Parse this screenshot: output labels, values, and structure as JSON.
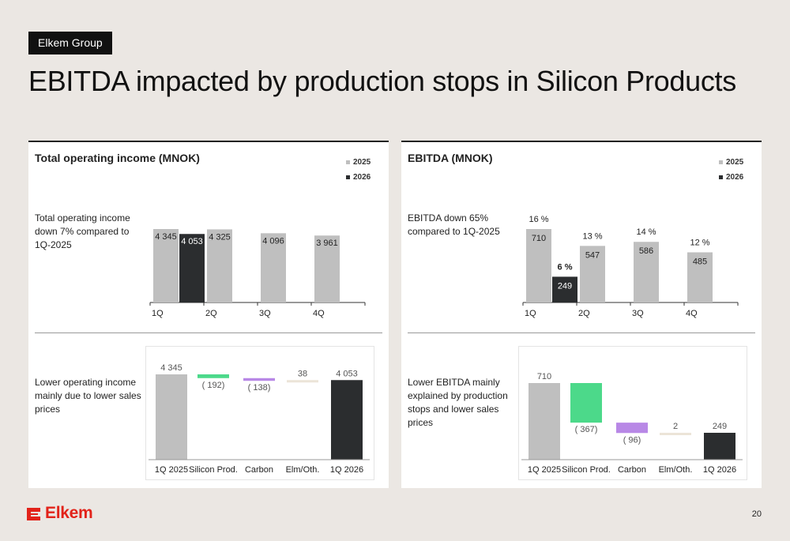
{
  "header": {
    "tag": "Elkem Group",
    "title": "EBITDA impacted by production stops in Silicon Products"
  },
  "colors": {
    "bar_2025": "#bfbfbf",
    "bar_2026": "#2b2d2f",
    "silicon": "#4cd98a",
    "carbon": "#b888e6",
    "elm": "#ece4d8",
    "brand": "#e2231a"
  },
  "left_panel": {
    "title": "Total operating income (MNOK)",
    "legend": [
      "2025",
      "2026"
    ],
    "note_top": "Total operating income down 7% compared to 1Q-2025",
    "note_bottom": "Lower operating income mainly due to lower sales prices"
  },
  "right_panel": {
    "title": "EBITDA (MNOK)",
    "legend": [
      "2025",
      "2026"
    ],
    "note_top": "EBITDA down 65% compared to 1Q-2025",
    "note_bottom": "Lower EBITDA mainly explained by production stops and lower sales prices"
  },
  "footer": {
    "logo": "Elkem",
    "page": "20"
  },
  "chart_data": [
    {
      "id": "toi_bar",
      "type": "bar",
      "title": "Total operating income (MNOK)",
      "categories": [
        "1Q",
        "2Q",
        "3Q",
        "4Q"
      ],
      "series": [
        {
          "name": "2025",
          "values": [
            4345,
            4325,
            4096,
            3961
          ],
          "labels": [
            "4 345",
            "4 325",
            "4 096",
            "3 961"
          ]
        },
        {
          "name": "2026",
          "values": [
            4053,
            null,
            null,
            null
          ],
          "labels": [
            "4 053",
            "",
            "",
            ""
          ]
        }
      ],
      "ylim": [
        0,
        4345
      ]
    },
    {
      "id": "toi_waterfall",
      "type": "bar",
      "subtype": "waterfall",
      "categories": [
        "1Q 2025",
        "Silicon Prod.",
        "Carbon",
        "Elm/Oth.",
        "1Q 2026"
      ],
      "values": [
        4345,
        -192,
        -138,
        38,
        4053
      ],
      "labels": [
        "4 345",
        "( 192)",
        "( 138)",
        "38",
        "4 053"
      ],
      "kinds": [
        "total",
        "delta",
        "delta",
        "delta",
        "total"
      ]
    },
    {
      "id": "ebitda_bar",
      "type": "bar",
      "title": "EBITDA (MNOK)",
      "categories": [
        "1Q",
        "2Q",
        "3Q",
        "4Q"
      ],
      "series": [
        {
          "name": "2025",
          "values": [
            710,
            547,
            586,
            485
          ],
          "labels": [
            "710",
            "547",
            "586",
            "485"
          ],
          "margins": [
            "16 %",
            "13 %",
            "14 %",
            "12 %"
          ]
        },
        {
          "name": "2026",
          "values": [
            249,
            null,
            null,
            null
          ],
          "labels": [
            "249",
            "",
            "",
            ""
          ],
          "margins": [
            "6 %",
            "",
            "",
            ""
          ]
        }
      ],
      "ylim": [
        0,
        710
      ]
    },
    {
      "id": "ebitda_waterfall",
      "type": "bar",
      "subtype": "waterfall",
      "categories": [
        "1Q 2025",
        "Silicon Prod.",
        "Carbon",
        "Elm/Oth.",
        "1Q 2026"
      ],
      "values": [
        710,
        -367,
        -96,
        2,
        249
      ],
      "labels": [
        "710",
        "( 367)",
        "( 96)",
        "2",
        "249"
      ],
      "kinds": [
        "total",
        "delta",
        "delta",
        "delta",
        "total"
      ]
    }
  ]
}
